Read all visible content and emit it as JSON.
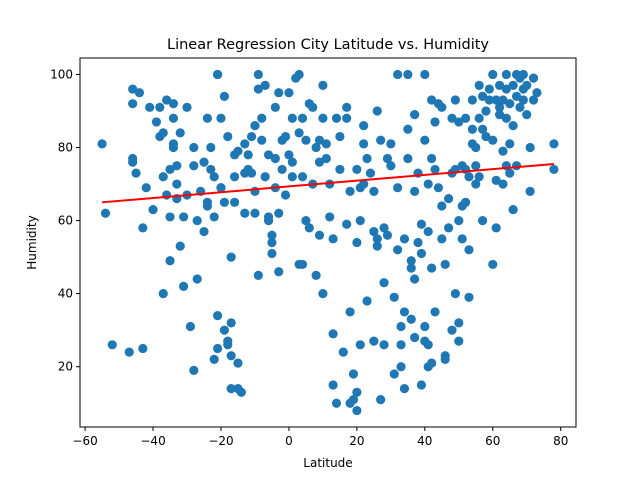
{
  "chart_data": {
    "type": "scatter",
    "title": "Linear Regression City Latitude vs. Humidity",
    "xlabel": "Latitude",
    "ylabel": "Humidity",
    "xlim": [
      -61.5,
      84.5
    ],
    "ylim": [
      3.5,
      104.5
    ],
    "xticks": [
      -60,
      -40,
      -20,
      0,
      20,
      40,
      60,
      80
    ],
    "yticks": [
      20,
      40,
      60,
      80,
      100
    ],
    "grid": false,
    "legend": "none",
    "colors": {
      "points": "#1f77b4",
      "regression": "#ff0000",
      "axes": "#000000"
    },
    "regression_line": {
      "x": [
        -55,
        78
      ],
      "y": [
        65,
        75.5
      ]
    },
    "points": [
      [
        -55,
        81
      ],
      [
        -54,
        62
      ],
      [
        -52,
        26
      ],
      [
        -47,
        24
      ],
      [
        -46,
        92
      ],
      [
        -46,
        96
      ],
      [
        -46,
        76
      ],
      [
        -46,
        77
      ],
      [
        -45,
        73
      ],
      [
        -44,
        95
      ],
      [
        -43,
        25
      ],
      [
        -43,
        58
      ],
      [
        -42,
        69
      ],
      [
        -41,
        91
      ],
      [
        -40,
        63
      ],
      [
        -39,
        87
      ],
      [
        -38,
        83
      ],
      [
        -38,
        91
      ],
      [
        -37,
        72
      ],
      [
        -37,
        40
      ],
      [
        -37,
        84
      ],
      [
        -36,
        67
      ],
      [
        -36,
        93
      ],
      [
        -35,
        49
      ],
      [
        -35,
        74
      ],
      [
        -35,
        61
      ],
      [
        -34,
        88
      ],
      [
        -34,
        80
      ],
      [
        -34,
        92
      ],
      [
        -34,
        81
      ],
      [
        -33,
        75
      ],
      [
        -33,
        70
      ],
      [
        -33,
        66
      ],
      [
        -32,
        84
      ],
      [
        -32,
        53
      ],
      [
        -31,
        42
      ],
      [
        -31,
        61
      ],
      [
        -30,
        91
      ],
      [
        -30,
        67
      ],
      [
        -29,
        31
      ],
      [
        -28,
        19
      ],
      [
        -28,
        80
      ],
      [
        -28,
        75
      ],
      [
        -27,
        60
      ],
      [
        -27,
        44
      ],
      [
        -26,
        68
      ],
      [
        -25,
        57
      ],
      [
        -25,
        76
      ],
      [
        -24,
        88
      ],
      [
        -24,
        65
      ],
      [
        -24,
        64
      ],
      [
        -23,
        80
      ],
      [
        -23,
        74
      ],
      [
        -22,
        72
      ],
      [
        -22,
        61
      ],
      [
        -22,
        22
      ],
      [
        -21,
        25
      ],
      [
        -21,
        34
      ],
      [
        -21,
        100
      ],
      [
        -21,
        100
      ],
      [
        -20,
        88
      ],
      [
        -20,
        69
      ],
      [
        -20,
        69
      ],
      [
        -19,
        65
      ],
      [
        -19,
        94
      ],
      [
        -19,
        30
      ],
      [
        -18,
        27
      ],
      [
        -18,
        26
      ],
      [
        -18,
        83
      ],
      [
        -17,
        14
      ],
      [
        -17,
        50
      ],
      [
        -17,
        32
      ],
      [
        -17,
        23
      ],
      [
        -16,
        78
      ],
      [
        -16,
        65
      ],
      [
        -16,
        72
      ],
      [
        -15,
        14
      ],
      [
        -15,
        21
      ],
      [
        -15,
        79
      ],
      [
        -14,
        13
      ],
      [
        -13,
        62
      ],
      [
        -13,
        73
      ],
      [
        -13,
        81
      ],
      [
        -12,
        74
      ],
      [
        -12,
        78
      ],
      [
        -11,
        83
      ],
      [
        -11,
        73
      ],
      [
        -10,
        86
      ],
      [
        -10,
        68
      ],
      [
        -10,
        62
      ],
      [
        -9,
        45
      ],
      [
        -9,
        100
      ],
      [
        -9,
        96
      ],
      [
        -8,
        88
      ],
      [
        -8,
        82
      ],
      [
        -7,
        72
      ],
      [
        -7,
        97
      ],
      [
        -6,
        78
      ],
      [
        -6,
        60
      ],
      [
        -6,
        61
      ],
      [
        -5,
        56
      ],
      [
        -5,
        51
      ],
      [
        -5,
        54
      ],
      [
        -4,
        77
      ],
      [
        -4,
        91
      ],
      [
        -4,
        69
      ],
      [
        -3,
        46
      ],
      [
        -3,
        95
      ],
      [
        -3,
        62
      ],
      [
        -2,
        82
      ],
      [
        -2,
        74
      ],
      [
        -1,
        67
      ],
      [
        -1,
        83
      ],
      [
        0,
        78
      ],
      [
        0,
        95
      ],
      [
        1,
        76
      ],
      [
        1,
        72
      ],
      [
        1,
        88
      ],
      [
        2,
        99
      ],
      [
        3,
        100
      ],
      [
        3,
        84
      ],
      [
        3,
        48
      ],
      [
        4,
        72
      ],
      [
        4,
        48
      ],
      [
        4,
        88
      ],
      [
        5,
        82
      ],
      [
        5,
        60
      ],
      [
        6,
        58
      ],
      [
        6,
        92
      ],
      [
        7,
        91
      ],
      [
        7,
        70
      ],
      [
        8,
        80
      ],
      [
        8,
        45
      ],
      [
        9,
        76
      ],
      [
        9,
        82
      ],
      [
        9,
        56
      ],
      [
        10,
        40
      ],
      [
        10,
        97
      ],
      [
        10,
        88
      ],
      [
        11,
        77
      ],
      [
        11,
        81
      ],
      [
        12,
        70
      ],
      [
        12,
        61
      ],
      [
        13,
        29
      ],
      [
        13,
        55
      ],
      [
        13,
        15
      ],
      [
        14,
        10
      ],
      [
        14,
        88
      ],
      [
        15,
        74
      ],
      [
        15,
        83
      ],
      [
        16,
        24
      ],
      [
        17,
        59
      ],
      [
        17,
        88
      ],
      [
        17,
        91
      ],
      [
        18,
        68
      ],
      [
        18,
        35
      ],
      [
        18,
        10
      ],
      [
        19,
        11
      ],
      [
        19,
        18
      ],
      [
        20,
        8
      ],
      [
        20,
        54
      ],
      [
        20,
        13
      ],
      [
        20,
        74
      ],
      [
        21,
        26
      ],
      [
        21,
        60
      ],
      [
        21,
        69
      ],
      [
        22,
        86
      ],
      [
        22,
        70
      ],
      [
        22,
        81
      ],
      [
        23,
        38
      ],
      [
        23,
        77
      ],
      [
        24,
        73
      ],
      [
        25,
        27
      ],
      [
        25,
        68
      ],
      [
        25,
        57
      ],
      [
        26,
        90
      ],
      [
        26,
        53
      ],
      [
        26,
        55
      ],
      [
        27,
        11
      ],
      [
        27,
        82
      ],
      [
        28,
        43
      ],
      [
        28,
        26
      ],
      [
        28,
        58
      ],
      [
        29,
        77
      ],
      [
        29,
        56
      ],
      [
        30,
        75
      ],
      [
        30,
        81
      ],
      [
        31,
        18
      ],
      [
        31,
        39
      ],
      [
        32,
        100
      ],
      [
        32,
        52
      ],
      [
        32,
        69
      ],
      [
        33,
        26
      ],
      [
        33,
        31
      ],
      [
        33,
        20
      ],
      [
        34,
        35
      ],
      [
        34,
        55
      ],
      [
        34,
        14
      ],
      [
        35,
        100
      ],
      [
        35,
        85
      ],
      [
        35,
        77
      ],
      [
        36,
        47
      ],
      [
        36,
        33
      ],
      [
        36,
        49
      ],
      [
        37,
        89
      ],
      [
        37,
        28
      ],
      [
        37,
        68
      ],
      [
        37,
        44
      ],
      [
        38,
        73
      ],
      [
        38,
        54
      ],
      [
        39,
        59
      ],
      [
        39,
        15
      ],
      [
        39,
        51
      ],
      [
        40,
        27
      ],
      [
        40,
        82
      ],
      [
        40,
        100
      ],
      [
        40,
        31
      ],
      [
        41,
        70
      ],
      [
        41,
        26
      ],
      [
        41,
        20
      ],
      [
        41,
        57
      ],
      [
        42,
        21
      ],
      [
        42,
        77
      ],
      [
        42,
        93
      ],
      [
        42,
        47
      ],
      [
        43,
        35
      ],
      [
        43,
        74
      ],
      [
        43,
        87
      ],
      [
        44,
        69
      ],
      [
        44,
        92
      ],
      [
        45,
        91
      ],
      [
        45,
        55
      ],
      [
        45,
        64
      ],
      [
        46,
        23
      ],
      [
        46,
        48
      ],
      [
        46,
        22
      ],
      [
        47,
        58
      ],
      [
        47,
        66
      ],
      [
        48,
        88
      ],
      [
        48,
        73
      ],
      [
        48,
        30
      ],
      [
        49,
        93
      ],
      [
        49,
        74
      ],
      [
        49,
        40
      ],
      [
        50,
        32
      ],
      [
        50,
        27
      ],
      [
        50,
        60
      ],
      [
        50,
        87
      ],
      [
        51,
        75
      ],
      [
        51,
        55
      ],
      [
        51,
        64
      ],
      [
        52,
        74
      ],
      [
        52,
        88
      ],
      [
        52,
        65
      ],
      [
        53,
        39
      ],
      [
        53,
        72
      ],
      [
        53,
        52
      ],
      [
        54,
        93
      ],
      [
        54,
        81
      ],
      [
        54,
        85
      ],
      [
        55,
        80
      ],
      [
        55,
        70
      ],
      [
        55,
        75
      ],
      [
        56,
        97
      ],
      [
        56,
        72
      ],
      [
        56,
        88
      ],
      [
        57,
        60
      ],
      [
        57,
        94
      ],
      [
        57,
        85
      ],
      [
        58,
        83
      ],
      [
        58,
        90
      ],
      [
        59,
        93
      ],
      [
        59,
        96
      ],
      [
        60,
        48
      ],
      [
        60,
        100
      ],
      [
        60,
        82
      ],
      [
        61,
        58
      ],
      [
        61,
        93
      ],
      [
        61,
        71
      ],
      [
        62,
        91
      ],
      [
        62,
        97
      ],
      [
        62,
        89
      ],
      [
        63,
        79
      ],
      [
        63,
        70
      ],
      [
        63,
        93
      ],
      [
        64,
        100
      ],
      [
        64,
        96
      ],
      [
        64,
        75
      ],
      [
        64,
        88
      ],
      [
        65,
        92
      ],
      [
        65,
        73
      ],
      [
        65,
        81
      ],
      [
        66,
        86
      ],
      [
        66,
        63
      ],
      [
        66,
        97
      ],
      [
        67,
        94
      ],
      [
        67,
        100
      ],
      [
        67,
        75
      ],
      [
        68,
        91
      ],
      [
        68,
        99
      ],
      [
        69,
        96
      ],
      [
        69,
        93
      ],
      [
        69,
        100
      ],
      [
        70,
        89
      ],
      [
        70,
        97
      ],
      [
        71,
        80
      ],
      [
        71,
        68
      ],
      [
        72,
        93
      ],
      [
        72,
        99
      ],
      [
        73,
        95
      ],
      [
        78,
        74
      ],
      [
        78,
        81
      ]
    ]
  }
}
